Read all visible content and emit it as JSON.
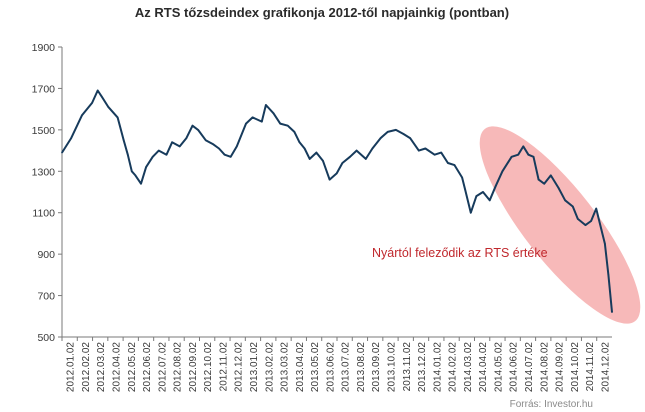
{
  "chart_data": {
    "type": "line",
    "title": "Az RTS tőzsdeindex grafikonja 2012-től napjainkig (pontban)",
    "xlabel": "",
    "ylabel": "",
    "ylim": [
      500,
      1900
    ],
    "y_ticks": [
      "500",
      "700",
      "900",
      "1100",
      "1300",
      "1500",
      "1700",
      "1900"
    ],
    "x_tick_labels": [
      "2012.01.02",
      "2012.02.02",
      "2012.03.02",
      "2012.04.02",
      "2012.05.02",
      "2012.06.02",
      "2012.07.02",
      "2012.08.02",
      "2012.09.02",
      "2012.10.02",
      "2012.11.02",
      "2012.12.02",
      "2013.01.02",
      "2013.02.02",
      "2013.03.02",
      "2013.04.02",
      "2013.05.02",
      "2013.06.02",
      "2013.07.02",
      "2013.08.02",
      "2013.09.02",
      "2013.10.02",
      "2013.11.02",
      "2013.12.02",
      "2014.01.02",
      "2014.02.02",
      "2014.03.02",
      "2014.04.02",
      "2014.05.02",
      "2014.06.02",
      "2014.07.02",
      "2014.08.02",
      "2014.09.02",
      "2014.10.02",
      "2014.11.02",
      "2014.12.02"
    ],
    "series": [
      {
        "name": "",
        "color": "#173b5c",
        "x": [
          "2012-01-02",
          "2012-01-20",
          "2012-02-10",
          "2012-03-01",
          "2012-03-12",
          "2012-03-20",
          "2012-04-02",
          "2012-04-20",
          "2012-05-02",
          "2012-05-10",
          "2012-05-18",
          "2012-05-25",
          "2012-06-05",
          "2012-06-15",
          "2012-06-28",
          "2012-07-10",
          "2012-07-25",
          "2012-08-05",
          "2012-08-20",
          "2012-09-02",
          "2012-09-14",
          "2012-09-25",
          "2012-10-10",
          "2012-10-25",
          "2012-11-05",
          "2012-11-16",
          "2012-11-28",
          "2012-12-10",
          "2012-12-28",
          "2013-01-10",
          "2013-01-28",
          "2013-02-05",
          "2013-02-20",
          "2013-03-05",
          "2013-03-20",
          "2013-04-02",
          "2013-04-12",
          "2013-04-22",
          "2013-05-02",
          "2013-05-15",
          "2013-05-28",
          "2013-06-10",
          "2013-06-24",
          "2013-07-05",
          "2013-07-20",
          "2013-08-02",
          "2013-08-20",
          "2013-09-02",
          "2013-09-18",
          "2013-10-02",
          "2013-10-18",
          "2013-11-02",
          "2013-11-15",
          "2013-12-02",
          "2013-12-15",
          "2014-01-02",
          "2014-01-15",
          "2014-01-28",
          "2014-02-10",
          "2014-02-25",
          "2014-03-03",
          "2014-03-14",
          "2014-03-25",
          "2014-04-07",
          "2014-04-20",
          "2014-05-02",
          "2014-05-15",
          "2014-06-02",
          "2014-06-15",
          "2014-06-25",
          "2014-07-05",
          "2014-07-15",
          "2014-07-25",
          "2014-08-05",
          "2014-08-18",
          "2014-09-02",
          "2014-09-15",
          "2014-09-30",
          "2014-10-10",
          "2014-10-25",
          "2014-11-05",
          "2014-11-15",
          "2014-11-25",
          "2014-12-02",
          "2014-12-09",
          "2014-12-16"
        ],
        "y": [
          1390,
          1460,
          1570,
          1630,
          1690,
          1660,
          1610,
          1560,
          1450,
          1380,
          1300,
          1280,
          1240,
          1320,
          1370,
          1400,
          1380,
          1440,
          1420,
          1460,
          1520,
          1500,
          1450,
          1430,
          1410,
          1380,
          1370,
          1420,
          1530,
          1560,
          1540,
          1620,
          1580,
          1530,
          1520,
          1490,
          1440,
          1410,
          1360,
          1390,
          1350,
          1260,
          1290,
          1340,
          1370,
          1400,
          1360,
          1410,
          1460,
          1490,
          1500,
          1480,
          1460,
          1400,
          1410,
          1380,
          1390,
          1340,
          1330,
          1270,
          1210,
          1100,
          1180,
          1200,
          1160,
          1230,
          1300,
          1370,
          1380,
          1420,
          1380,
          1370,
          1260,
          1240,
          1280,
          1220,
          1160,
          1130,
          1070,
          1040,
          1060,
          1120,
          1020,
          950,
          800,
          620
        ]
      }
    ],
    "highlight": {
      "label": "Nyártól feleződik az RTS értéke",
      "color": "#f08080"
    },
    "source": "Forrás: Investor.hu"
  }
}
